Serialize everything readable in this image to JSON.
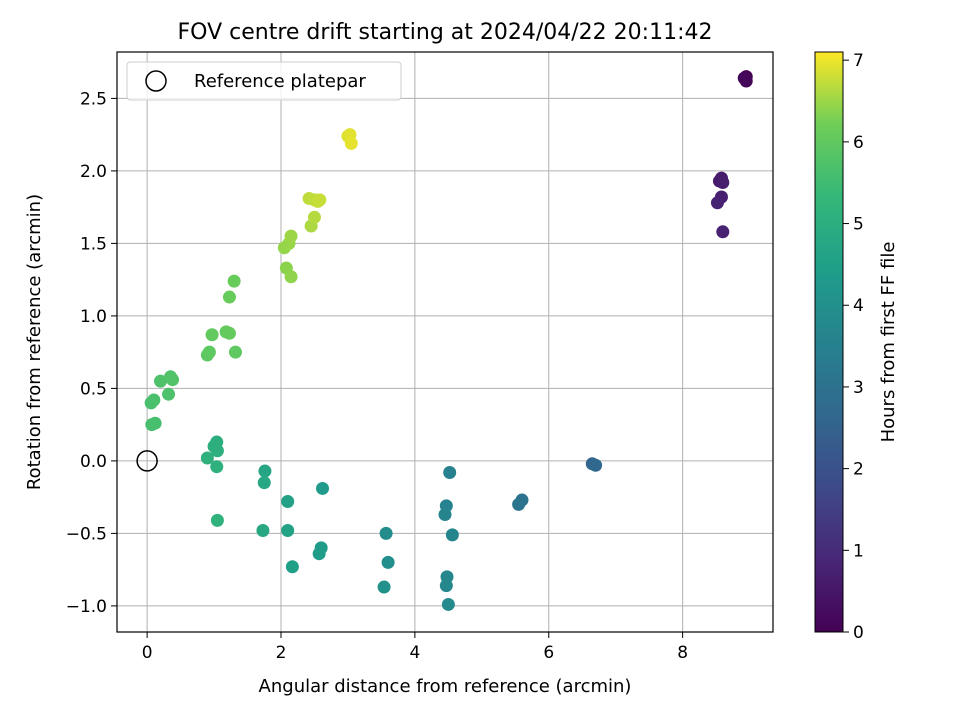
{
  "chart_data": {
    "type": "scatter",
    "title": "FOV centre drift starting at 2024/04/22 20:11:42",
    "xlabel": "Angular distance from reference (arcmin)",
    "ylabel": "Rotation from reference (arcmin)",
    "xlim": [
      -0.45,
      9.35
    ],
    "ylim": [
      -1.18,
      2.82
    ],
    "xticks": [
      0,
      2,
      4,
      6,
      8
    ],
    "xtick_labels": [
      "0",
      "2",
      "4",
      "6",
      "8"
    ],
    "yticks": [
      -1.0,
      -0.5,
      0.0,
      0.5,
      1.0,
      1.5,
      2.0,
      2.5
    ],
    "ytick_labels": [
      "−1.0",
      "−0.5",
      "0.0",
      "0.5",
      "1.0",
      "1.5",
      "2.0",
      "2.5"
    ],
    "grid": true,
    "legend": {
      "position": "upper-left",
      "entries": [
        {
          "label": "Reference platepar",
          "marker": "open-circle",
          "x": 0,
          "y": 0
        }
      ]
    },
    "colorbar": {
      "label": "Hours from first FF file",
      "range": [
        0,
        7.1
      ],
      "ticks": [
        0,
        1,
        2,
        3,
        4,
        5,
        6,
        7
      ],
      "tick_labels": [
        "0",
        "1",
        "2",
        "3",
        "4",
        "5",
        "6",
        "7"
      ],
      "colormap": "viridis"
    },
    "series": [
      {
        "color_by": "hours",
        "points": [
          {
            "x": 8.95,
            "y": 2.65,
            "c": 0.05
          },
          {
            "x": 8.95,
            "y": 2.62,
            "c": 0.1
          },
          {
            "x": 8.92,
            "y": 2.64,
            "c": 0.15
          },
          {
            "x": 8.55,
            "y": 1.93,
            "c": 0.55
          },
          {
            "x": 8.58,
            "y": 1.95,
            "c": 0.6
          },
          {
            "x": 8.6,
            "y": 1.92,
            "c": 0.65
          },
          {
            "x": 8.58,
            "y": 1.82,
            "c": 0.7
          },
          {
            "x": 8.52,
            "y": 1.78,
            "c": 0.75
          },
          {
            "x": 8.6,
            "y": 1.58,
            "c": 0.8
          },
          {
            "x": 6.65,
            "y": -0.02,
            "c": 2.6
          },
          {
            "x": 6.7,
            "y": -0.03,
            "c": 2.65
          },
          {
            "x": 5.6,
            "y": -0.27,
            "c": 3.0
          },
          {
            "x": 5.55,
            "y": -0.3,
            "c": 3.05
          },
          {
            "x": 4.52,
            "y": -0.08,
            "c": 3.5
          },
          {
            "x": 4.47,
            "y": -0.31,
            "c": 3.55
          },
          {
            "x": 4.45,
            "y": -0.37,
            "c": 3.6
          },
          {
            "x": 4.56,
            "y": -0.51,
            "c": 3.65
          },
          {
            "x": 4.48,
            "y": -0.8,
            "c": 3.7
          },
          {
            "x": 4.47,
            "y": -0.86,
            "c": 3.75
          },
          {
            "x": 4.5,
            "y": -0.99,
            "c": 3.8
          },
          {
            "x": 3.57,
            "y": -0.5,
            "c": 3.9
          },
          {
            "x": 3.6,
            "y": -0.7,
            "c": 3.95
          },
          {
            "x": 3.54,
            "y": -0.87,
            "c": 4.0
          },
          {
            "x": 2.62,
            "y": -0.19,
            "c": 4.3
          },
          {
            "x": 2.6,
            "y": -0.6,
            "c": 4.35
          },
          {
            "x": 2.57,
            "y": -0.64,
            "c": 4.4
          },
          {
            "x": 2.17,
            "y": -0.73,
            "c": 4.5
          },
          {
            "x": 2.1,
            "y": -0.28,
            "c": 4.55
          },
          {
            "x": 2.1,
            "y": -0.48,
            "c": 4.6
          },
          {
            "x": 1.76,
            "y": -0.07,
            "c": 4.7
          },
          {
            "x": 1.75,
            "y": -0.15,
            "c": 4.75
          },
          {
            "x": 1.73,
            "y": -0.48,
            "c": 4.8
          },
          {
            "x": 1.04,
            "y": 0.13,
            "c": 5.0
          },
          {
            "x": 1.0,
            "y": 0.1,
            "c": 5.02
          },
          {
            "x": 1.05,
            "y": 0.07,
            "c": 5.05
          },
          {
            "x": 0.9,
            "y": 0.02,
            "c": 5.08
          },
          {
            "x": 1.04,
            "y": -0.04,
            "c": 5.1
          },
          {
            "x": 1.05,
            "y": -0.41,
            "c": 5.15
          },
          {
            "x": 0.12,
            "y": 0.26,
            "c": 5.6
          },
          {
            "x": 0.07,
            "y": 0.25,
            "c": 5.62
          },
          {
            "x": 0.06,
            "y": 0.4,
            "c": 5.65
          },
          {
            "x": 0.1,
            "y": 0.42,
            "c": 5.67
          },
          {
            "x": 0.32,
            "y": 0.46,
            "c": 5.7
          },
          {
            "x": 0.2,
            "y": 0.55,
            "c": 5.72
          },
          {
            "x": 0.35,
            "y": 0.58,
            "c": 5.75
          },
          {
            "x": 0.38,
            "y": 0.56,
            "c": 5.77
          },
          {
            "x": 0.9,
            "y": 0.73,
            "c": 5.95
          },
          {
            "x": 0.93,
            "y": 0.75,
            "c": 5.97
          },
          {
            "x": 1.32,
            "y": 0.75,
            "c": 6.0
          },
          {
            "x": 0.97,
            "y": 0.87,
            "c": 6.02
          },
          {
            "x": 1.18,
            "y": 0.89,
            "c": 6.05
          },
          {
            "x": 1.23,
            "y": 0.88,
            "c": 6.07
          },
          {
            "x": 1.23,
            "y": 1.13,
            "c": 6.1
          },
          {
            "x": 1.3,
            "y": 1.24,
            "c": 6.12
          },
          {
            "x": 2.08,
            "y": 1.33,
            "c": 6.4
          },
          {
            "x": 2.15,
            "y": 1.27,
            "c": 6.42
          },
          {
            "x": 2.05,
            "y": 1.47,
            "c": 6.45
          },
          {
            "x": 2.12,
            "y": 1.5,
            "c": 6.47
          },
          {
            "x": 2.15,
            "y": 1.55,
            "c": 6.5
          },
          {
            "x": 2.45,
            "y": 1.62,
            "c": 6.6
          },
          {
            "x": 2.5,
            "y": 1.68,
            "c": 6.65
          },
          {
            "x": 2.42,
            "y": 1.81,
            "c": 6.7
          },
          {
            "x": 2.5,
            "y": 1.8,
            "c": 6.72
          },
          {
            "x": 2.55,
            "y": 1.79,
            "c": 6.75
          },
          {
            "x": 2.58,
            "y": 1.8,
            "c": 6.77
          },
          {
            "x": 3.0,
            "y": 2.24,
            "c": 6.9
          },
          {
            "x": 3.03,
            "y": 2.25,
            "c": 6.92
          },
          {
            "x": 3.05,
            "y": 2.19,
            "c": 6.95
          }
        ]
      }
    ]
  }
}
